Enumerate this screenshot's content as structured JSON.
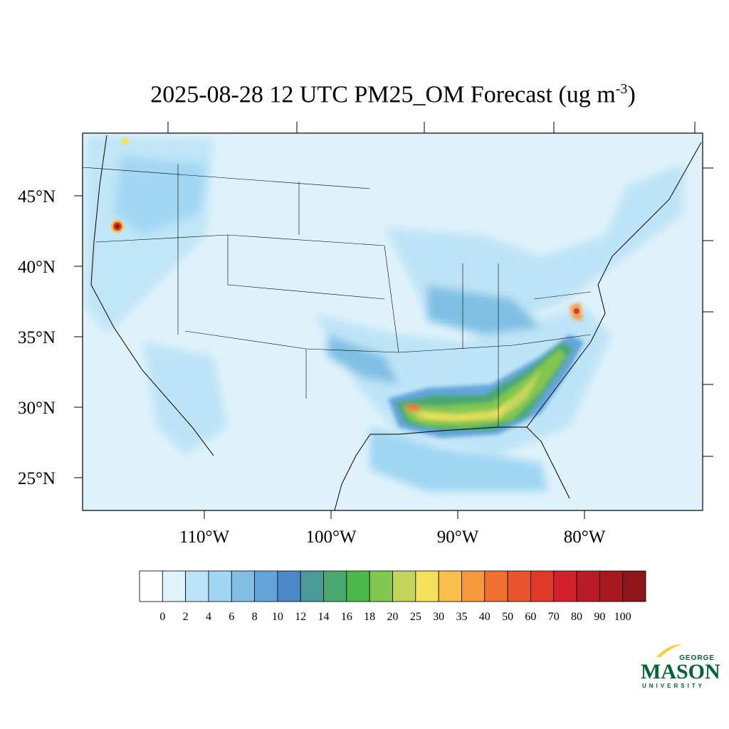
{
  "map": {
    "title_main": "2025-08-28 12 UTC PM25_OM Forecast (ug m",
    "title_sup": "-3",
    "title_close": ")",
    "lat_labels": [
      "45°N",
      "40°N",
      "35°N",
      "30°N",
      "25°N"
    ],
    "lon_labels": [
      "110°W",
      "100°W",
      "90°W",
      "80°W"
    ]
  },
  "colorbar": {
    "labels": [
      "0",
      "2",
      "4",
      "6",
      "8",
      "10",
      "12",
      "14",
      "16",
      "18",
      "20",
      "25",
      "30",
      "35",
      "40",
      "50",
      "60",
      "70",
      "80",
      "90",
      "100"
    ],
    "colors": [
      "#ffffff",
      "#e0f3fb",
      "#bde4f6",
      "#9ed6f3",
      "#7fbfe3",
      "#63a5d9",
      "#4a88c8",
      "#4a9a9a",
      "#48a870",
      "#4bb84b",
      "#80c650",
      "#c2d55a",
      "#f4e35a",
      "#f6c04a",
      "#f59a3c",
      "#f07030",
      "#e8542c",
      "#e0392a",
      "#d3202a",
      "#bb1b26",
      "#a8181f",
      "#8e1519"
    ]
  },
  "logo": {
    "line1": "GEORGE",
    "line2": "MASON",
    "line3": "UNIVERSITY",
    "colors": {
      "green": "#006633",
      "gold": "#ffcc33"
    }
  }
}
